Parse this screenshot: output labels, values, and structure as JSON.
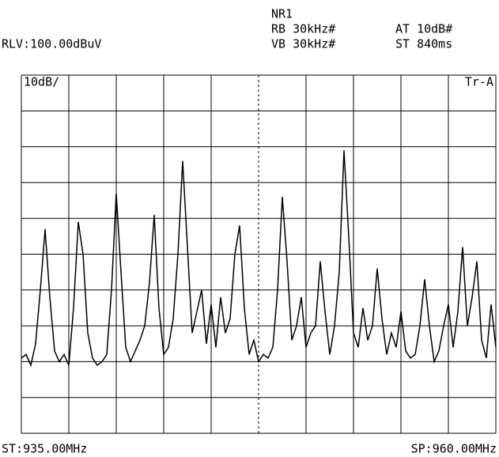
{
  "chart_data": {
    "type": "line",
    "annotations": [
      "NR1",
      "RB 30kHz#",
      "AT 10dB#",
      "RLV:100.00dBuV",
      "VB 30kHz#",
      "ST 840ms",
      "10dB/",
      "Tr-A",
      "ST:935.00MHz",
      "SP:960.00MHz"
    ],
    "x": [
      935,
      935.25,
      935.5,
      935.75,
      936,
      936.25,
      936.5,
      936.75,
      937,
      937.25,
      937.5,
      937.75,
      938,
      938.25,
      938.5,
      938.75,
      939,
      939.25,
      939.5,
      939.75,
      940,
      940.25,
      940.5,
      940.75,
      941,
      941.25,
      941.5,
      941.75,
      942,
      942.25,
      942.5,
      942.75,
      943,
      943.25,
      943.5,
      943.75,
      944,
      944.25,
      944.5,
      944.75,
      945,
      945.25,
      945.5,
      945.75,
      946,
      946.25,
      946.5,
      946.75,
      947,
      947.25,
      947.5,
      947.75,
      948,
      948.25,
      948.5,
      948.75,
      949,
      949.25,
      949.5,
      949.75,
      950,
      950.25,
      950.5,
      950.75,
      951,
      951.25,
      951.5,
      951.75,
      952,
      952.25,
      952.5,
      952.75,
      953,
      953.25,
      953.5,
      953.75,
      954,
      954.25,
      954.5,
      954.75,
      955,
      955.25,
      955.5,
      955.75,
      956,
      956.25,
      956.5,
      956.75,
      957,
      957.25,
      957.5,
      957.75,
      958,
      958.25,
      958.5,
      958.75,
      959,
      959.25,
      959.5,
      959.75,
      960
    ],
    "series": [
      {
        "name": "Tr-A",
        "color": "#000000",
        "values": [
          21,
          22,
          19,
          25,
          40,
          57,
          38,
          23,
          20,
          22,
          19,
          35,
          59,
          50,
          28,
          21,
          19,
          20,
          22,
          40,
          67,
          45,
          24,
          20,
          23,
          26,
          30,
          42,
          61,
          35,
          22,
          24,
          32,
          50,
          76,
          52,
          28,
          34,
          40,
          25,
          36,
          24,
          38,
          28,
          32,
          50,
          58,
          35,
          22,
          26,
          20,
          22,
          21,
          24,
          40,
          66,
          48,
          26,
          30,
          38,
          24,
          28,
          30,
          48,
          34,
          22,
          30,
          45,
          79,
          55,
          28,
          24,
          35,
          26,
          30,
          46,
          32,
          22,
          28,
          24,
          34,
          23,
          21,
          22,
          30,
          43,
          30,
          20,
          23,
          30,
          36,
          24,
          34,
          52,
          30,
          38,
          48,
          26,
          21,
          36,
          24
        ]
      }
    ],
    "xlim": [
      935,
      960
    ],
    "ylim": [
      0,
      100
    ],
    "xticks": [
      935,
      937.5,
      940,
      942.5,
      945,
      947.5,
      950,
      952.5,
      955,
      957.5,
      960
    ],
    "yticks": [
      0,
      10,
      20,
      30,
      40,
      50,
      60,
      70,
      80,
      90,
      100
    ],
    "grid": true
  }
}
